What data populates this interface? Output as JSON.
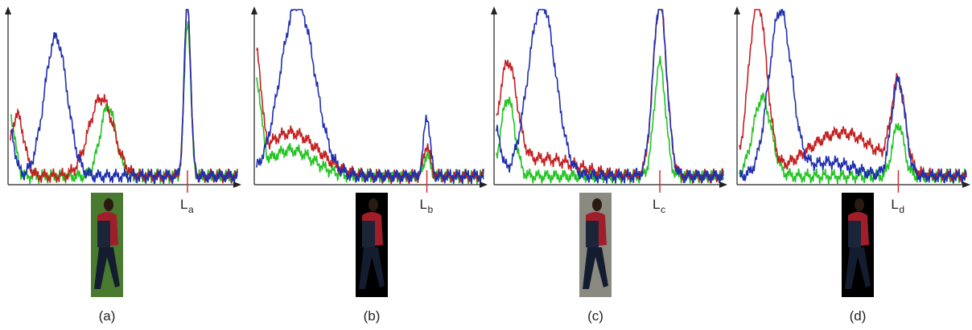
{
  "panels": [
    {
      "caption": "(a)",
      "marker": {
        "label": "L",
        "subscript": "a"
      }
    },
    {
      "caption": "(b)",
      "marker": {
        "label": "L",
        "subscript": "b"
      }
    },
    {
      "caption": "(c)",
      "marker": {
        "label": "L",
        "subscript": "c"
      }
    },
    {
      "caption": "(d)",
      "marker": {
        "label": "L",
        "subscript": "d"
      }
    }
  ]
}
